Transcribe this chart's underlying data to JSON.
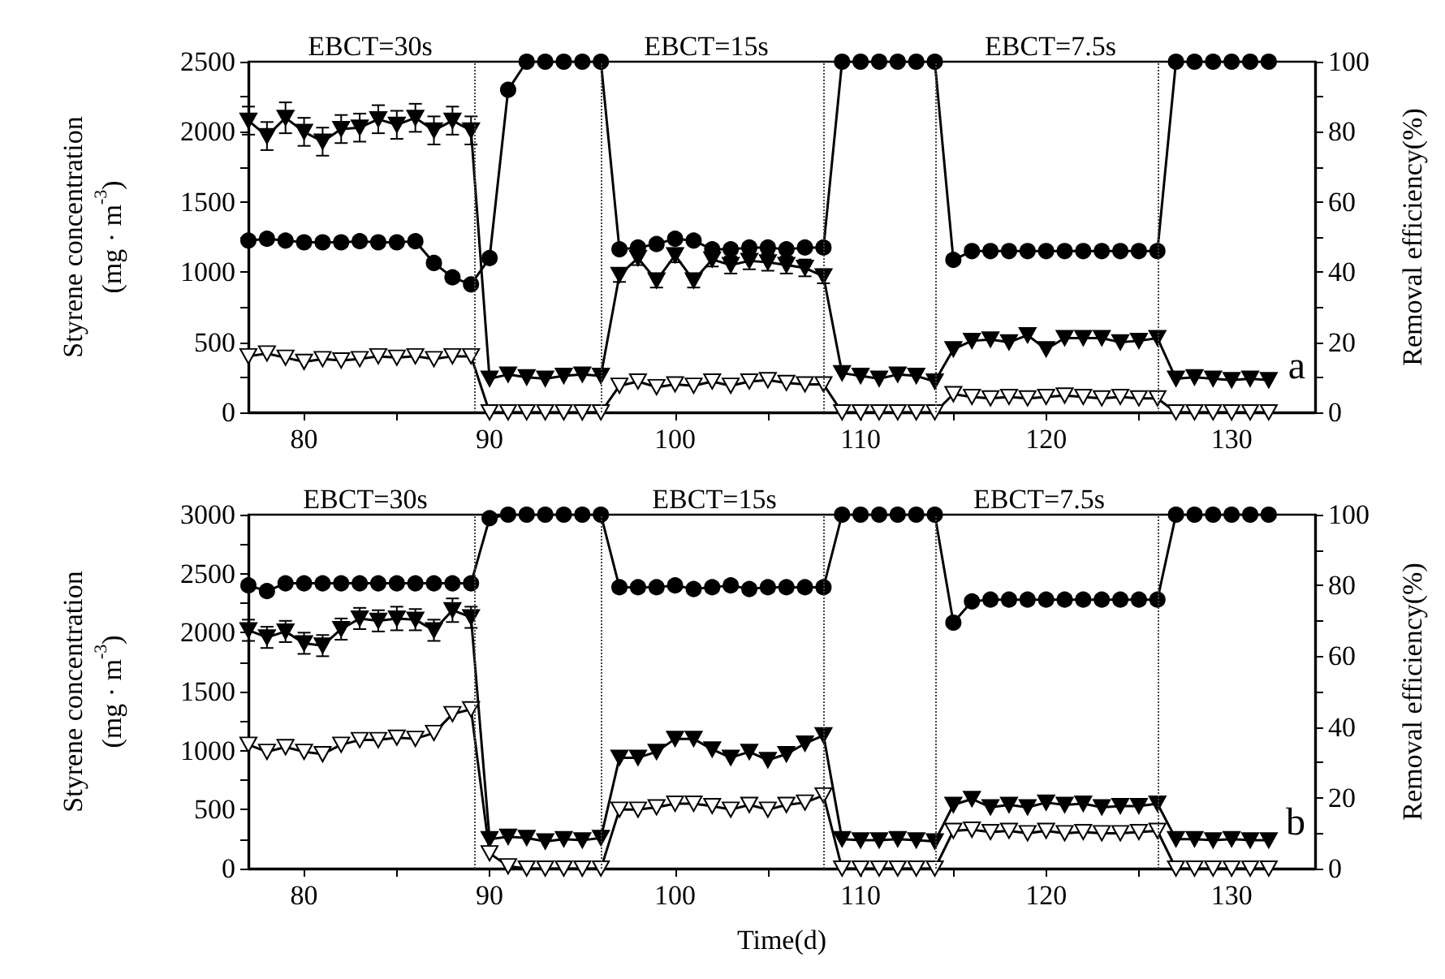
{
  "chart_data": [
    {
      "type": "line",
      "ylabel": "Styrene concentration\n(mg · m$^{-3}$)",
      "y2label": "Removal efficiency(%)",
      "x": [
        77,
        78,
        79,
        80,
        81,
        82,
        83,
        84,
        85,
        86,
        87,
        88,
        89,
        90,
        91,
        92,
        93,
        94,
        95,
        96,
        97,
        98,
        99,
        100,
        101,
        102,
        103,
        104,
        105,
        106,
        107,
        108,
        109,
        110,
        111,
        112,
        113,
        114,
        115,
        116,
        117,
        118,
        119,
        120,
        121,
        122,
        123,
        124,
        125,
        126,
        127,
        128,
        129,
        130,
        131,
        132
      ],
      "xlim": [
        77,
        134.5
      ],
      "xticks": [
        80,
        {
          "value": 85,
          "label": null
        },
        90,
        {
          "value": 95,
          "label": null
        },
        100,
        {
          "value": 105,
          "label": null
        },
        110,
        {
          "value": 115,
          "label": null
        },
        120,
        {
          "value": 125,
          "label": null
        },
        130
      ],
      "ylim": [
        0,
        2500
      ],
      "yticks": [
        0,
        {
          "value": 250,
          "label": null
        },
        500,
        {
          "value": 750,
          "label": null
        },
        1000,
        {
          "value": 1250,
          "label": null
        },
        1500,
        {
          "value": 1750,
          "label": null
        },
        2000,
        {
          "value": 2250,
          "label": null
        },
        2500
      ],
      "y2lim": [
        0,
        100
      ],
      "y2ticks": [
        0,
        {
          "value": 10,
          "label": null
        },
        20,
        {
          "value": 30,
          "label": null
        },
        40,
        {
          "value": 50,
          "label": null
        },
        60,
        {
          "value": 70,
          "label": null
        },
        80,
        {
          "value": 90,
          "label": null
        },
        100
      ],
      "series": [
        {
          "color": "#000000",
          "marker": "triangle",
          "values": [
            2080,
            1970,
            2100,
            2000,
            1930,
            2020,
            2030,
            2090,
            2050,
            2100,
            2010,
            2080,
            2010,
            240,
            270,
            250,
            240,
            260,
            270,
            260,
            980,
            1100,
            940,
            1120,
            940,
            1090,
            1050,
            1080,
            1070,
            1050,
            1030,
            970,
            280,
            260,
            240,
            270,
            260,
            220,
            450,
            510,
            520,
            500,
            550,
            450,
            530,
            530,
            530,
            500,
            510,
            530,
            240,
            250,
            240,
            230,
            240,
            230
          ],
          "errors": [
            100,
            100,
            110,
            100,
            100,
            100,
            100,
            100,
            100,
            100,
            100,
            100,
            100,
            null,
            null,
            null,
            null,
            null,
            null,
            null,
            50,
            50,
            50,
            50,
            50,
            50,
            60,
            60,
            60,
            60,
            60,
            50,
            null,
            null,
            null,
            null,
            null,
            null,
            null,
            null,
            null,
            null,
            null,
            null,
            null,
            null,
            null,
            null,
            null,
            null,
            null,
            null,
            null,
            null,
            null,
            null
          ]
        },
        {
          "color": "#ffffff",
          "marker": "triangle",
          "values": [
            400,
            420,
            390,
            360,
            380,
            370,
            380,
            400,
            390,
            400,
            380,
            400,
            400,
            0,
            0,
            0,
            0,
            0,
            0,
            0,
            190,
            220,
            180,
            200,
            190,
            220,
            190,
            220,
            230,
            210,
            200,
            200,
            0,
            0,
            0,
            0,
            0,
            0,
            130,
            110,
            100,
            110,
            100,
            110,
            120,
            110,
            100,
            110,
            100,
            100,
            0,
            0,
            0,
            0,
            0,
            0
          ]
        },
        {
          "color": "#000000",
          "marker": "circle",
          "axis": "y2",
          "values": [
            49,
            49.5,
            49,
            48.5,
            48.5,
            48.5,
            48.8,
            48.5,
            48.5,
            48.8,
            42.6,
            38.5,
            36.5,
            44,
            92,
            100,
            100,
            100,
            100,
            100,
            46.5,
            47,
            48,
            49.5,
            49,
            46.5,
            46.5,
            47,
            47,
            46.5,
            47,
            47,
            100,
            100,
            100,
            100,
            100,
            100,
            43.5,
            46,
            46,
            46,
            46,
            46,
            46,
            46,
            46,
            46,
            46,
            46,
            100,
            100,
            100,
            100,
            100,
            100
          ]
        }
      ],
      "ref_lines": [
        {
          "axis": "x",
          "value": 89.2,
          "line_style": "dotted"
        },
        {
          "axis": "x",
          "value": 96,
          "line_style": "dotted"
        },
        {
          "axis": "x",
          "value": 108,
          "line_style": "dotted"
        },
        {
          "axis": "x",
          "value": 114,
          "line_style": "dotted"
        },
        {
          "axis": "x",
          "value": 126,
          "line_style": "dotted"
        }
      ],
      "annotations": [
        "EBCT=30s",
        "EBCT=15s",
        "EBCT=7.5s",
        "a"
      ]
    },
    {
      "type": "line",
      "xlabel": "Time(d)",
      "ylabel": "Styrene concentration\n(mg · m$^{-3}$)",
      "y2label": "Removal efficiency(%)",
      "x": [
        77,
        78,
        79,
        80,
        81,
        82,
        83,
        84,
        85,
        86,
        87,
        88,
        89,
        90,
        91,
        92,
        93,
        94,
        95,
        96,
        97,
        98,
        99,
        100,
        101,
        102,
        103,
        104,
        105,
        106,
        107,
        108,
        109,
        110,
        111,
        112,
        113,
        114,
        115,
        116,
        117,
        118,
        119,
        120,
        121,
        122,
        123,
        124,
        125,
        126,
        127,
        128,
        129,
        130,
        131,
        132
      ],
      "xlim": [
        77,
        134.5
      ],
      "xticks": [
        80,
        {
          "value": 85,
          "label": null
        },
        90,
        {
          "value": 95,
          "label": null
        },
        100,
        {
          "value": 105,
          "label": null
        },
        110,
        {
          "value": 115,
          "label": null
        },
        120,
        {
          "value": 125,
          "label": null
        },
        130
      ],
      "ylim": [
        0,
        3000
      ],
      "yticks": [
        0,
        {
          "value": 250,
          "label": null
        },
        500,
        {
          "value": 750,
          "label": null
        },
        1000,
        {
          "value": 1250,
          "label": null
        },
        1500,
        {
          "value": 1750,
          "label": null
        },
        2000,
        {
          "value": 2250,
          "label": null
        },
        2500,
        {
          "value": 2750,
          "label": null
        },
        3000
      ],
      "y2lim": [
        0,
        100
      ],
      "y2ticks": [
        0,
        {
          "value": 10,
          "label": null
        },
        20,
        {
          "value": 30,
          "label": null
        },
        40,
        {
          "value": 50,
          "label": null
        },
        60,
        {
          "value": 70,
          "label": null
        },
        80,
        {
          "value": 90,
          "label": null
        },
        100
      ],
      "series": [
        {
          "color": "#000000",
          "marker": "triangle",
          "values": [
            2020,
            1960,
            2010,
            1910,
            1890,
            2030,
            2120,
            2100,
            2120,
            2110,
            2020,
            2190,
            2130,
            250,
            270,
            260,
            230,
            250,
            240,
            260,
            940,
            940,
            990,
            1100,
            1100,
            1010,
            940,
            990,
            920,
            970,
            1060,
            1130,
            250,
            240,
            240,
            250,
            240,
            230,
            540,
            590,
            520,
            540,
            520,
            560,
            540,
            550,
            520,
            530,
            530,
            550,
            250,
            250,
            240,
            250,
            240,
            240
          ],
          "errors": [
            90,
            90,
            90,
            90,
            90,
            90,
            90,
            90,
            100,
            90,
            90,
            100,
            90,
            null,
            null,
            null,
            null,
            null,
            null,
            null,
            null,
            null,
            null,
            null,
            null,
            null,
            null,
            null,
            null,
            null,
            null,
            null,
            null,
            null,
            null,
            null,
            null,
            null,
            null,
            null,
            null,
            null,
            null,
            null,
            null,
            null,
            null,
            null,
            null,
            null,
            null,
            null,
            null,
            null,
            null,
            null
          ]
        },
        {
          "color": "#ffffff",
          "marker": "triangle",
          "values": [
            1050,
            990,
            1030,
            990,
            970,
            1050,
            1090,
            1090,
            1110,
            1100,
            1150,
            1310,
            1350,
            130,
            20,
            0,
            0,
            0,
            0,
            0,
            500,
            500,
            520,
            550,
            550,
            530,
            500,
            540,
            500,
            540,
            560,
            620,
            0,
            0,
            0,
            0,
            0,
            0,
            320,
            330,
            310,
            320,
            300,
            320,
            300,
            310,
            300,
            300,
            310,
            320,
            0,
            0,
            0,
            0,
            0,
            0
          ]
        },
        {
          "color": "#000000",
          "marker": "circle",
          "axis": "y2",
          "values": [
            80,
            78.4,
            80.6,
            80.6,
            80.6,
            80.6,
            80.6,
            80.6,
            80.6,
            80.6,
            80.6,
            80.6,
            80.6,
            99,
            100,
            100,
            100,
            100,
            100,
            100,
            79.5,
            79.5,
            79.5,
            80,
            79,
            79.5,
            80,
            79,
            79.5,
            79.5,
            79.5,
            79.5,
            100,
            100,
            100,
            100,
            100,
            100,
            69.5,
            75.5,
            76,
            76,
            76,
            76,
            76,
            76,
            76,
            76,
            76,
            76,
            100,
            100,
            100,
            100,
            100,
            100
          ]
        }
      ],
      "ref_lines": [
        {
          "axis": "x",
          "value": 89.2,
          "line_style": "dotted"
        },
        {
          "axis": "x",
          "value": 96,
          "line_style": "dotted"
        },
        {
          "axis": "x",
          "value": 108,
          "line_style": "dotted"
        },
        {
          "axis": "x",
          "value": 114,
          "line_style": "dotted"
        },
        {
          "axis": "x",
          "value": 126,
          "line_style": "dotted"
        }
      ],
      "annotations": [
        "EBCT=30s",
        "EBCT=15s",
        "EBCT=7.5s",
        "b"
      ]
    }
  ]
}
